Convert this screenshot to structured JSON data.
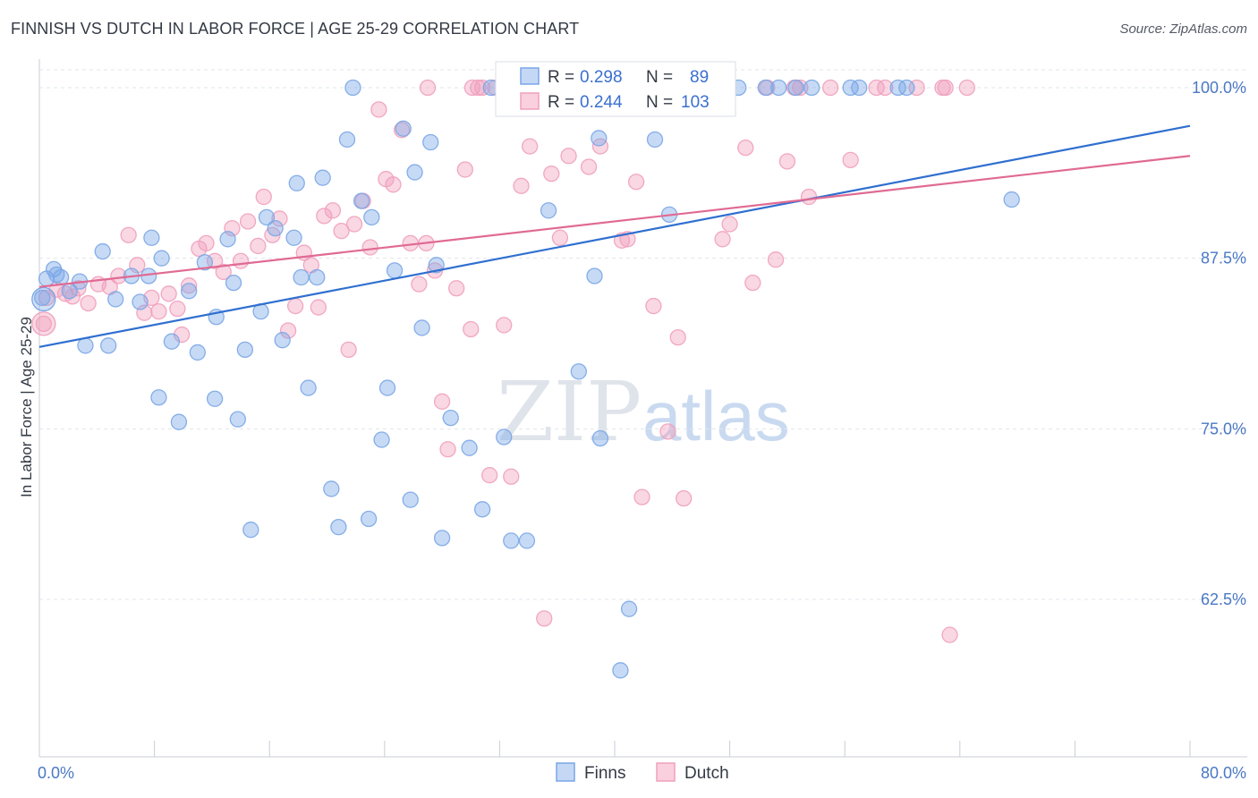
{
  "header": {
    "title": "FINNISH VS DUTCH IN LABOR FORCE | AGE 25-29 CORRELATION CHART",
    "source": "Source: ZipAtlas.com"
  },
  "watermark": {
    "zip": "ZIP",
    "atlas": "atlas"
  },
  "chart_data": {
    "type": "scatter",
    "title": "FINNISH VS DUTCH IN LABOR FORCE | AGE 25-29 CORRELATION CHART",
    "xlabel": "",
    "ylabel": "In Labor Force | Age 25-29",
    "xlim": [
      0,
      80
    ],
    "ylim": [
      51.5,
      101.5
    ],
    "x_tick_labels": [
      "0.0%",
      "80.0%"
    ],
    "y_ticks": [
      62.5,
      75.0,
      87.5,
      100.0
    ],
    "y_tick_labels": [
      "62.5%",
      "75.0%",
      "87.5%",
      "100.0%"
    ],
    "grid": true,
    "legend_position": "top-center",
    "colors": {
      "finns": "#7aa6e6",
      "dutch": "#f0a0bc",
      "finns_line": "#2f6fd0",
      "dutch_line": "#e06a93"
    },
    "legend": [
      {
        "series": "Finns",
        "r_label": "R =",
        "r": "0.298",
        "n_label": "N =",
        "n": "89"
      },
      {
        "series": "Dutch",
        "r_label": "R =",
        "r": "0.244",
        "n_label": "N =",
        "n": "103"
      }
    ],
    "series": [
      {
        "name": "Finns",
        "trend": [
          [
            0,
            81.0
          ],
          [
            80,
            97.2
          ]
        ],
        "points": [
          [
            0.2,
            84.6
          ],
          [
            0.5,
            86
          ],
          [
            1,
            86.7
          ],
          [
            1.2,
            86.3
          ],
          [
            1.5,
            86.1
          ],
          [
            2.1,
            85.1
          ],
          [
            2.8,
            85.8
          ],
          [
            4.4,
            88
          ],
          [
            3.2,
            81.1
          ],
          [
            4.8,
            81.1
          ],
          [
            5.3,
            84.5
          ],
          [
            6.4,
            86.2
          ],
          [
            7,
            84.3
          ],
          [
            7.6,
            86.2
          ],
          [
            7.8,
            89
          ],
          [
            8.5,
            87.5
          ],
          [
            9.2,
            81.4
          ],
          [
            8.3,
            77.3
          ],
          [
            9.7,
            75.5
          ],
          [
            10.4,
            85.1
          ],
          [
            11,
            80.6
          ],
          [
            11.5,
            87.2
          ],
          [
            12.2,
            77.2
          ],
          [
            12.3,
            83.2
          ],
          [
            13.1,
            88.9
          ],
          [
            13.5,
            85.7
          ],
          [
            13.8,
            75.7
          ],
          [
            14.3,
            80.8
          ],
          [
            14.7,
            67.6
          ],
          [
            15.4,
            83.6
          ],
          [
            15.8,
            90.5
          ],
          [
            16.4,
            89.7
          ],
          [
            16.9,
            81.5
          ],
          [
            17.7,
            89
          ],
          [
            17.9,
            93
          ],
          [
            18.2,
            86.1
          ],
          [
            18.7,
            78
          ],
          [
            19.3,
            86.1
          ],
          [
            19.7,
            93.4
          ],
          [
            20.3,
            70.6
          ],
          [
            20.8,
            67.8
          ],
          [
            21.4,
            96.2
          ],
          [
            21.8,
            100
          ],
          [
            22.4,
            91.7
          ],
          [
            22.9,
            68.4
          ],
          [
            23.1,
            90.5
          ],
          [
            23.8,
            74.2
          ],
          [
            24.2,
            78
          ],
          [
            24.7,
            86.6
          ],
          [
            25.3,
            97
          ],
          [
            25.8,
            69.8
          ],
          [
            26.1,
            93.8
          ],
          [
            26.6,
            82.4
          ],
          [
            27.2,
            96
          ],
          [
            27.6,
            87
          ],
          [
            28,
            67
          ],
          [
            28.6,
            75.8
          ],
          [
            29.9,
            73.6
          ],
          [
            30.8,
            69.1
          ],
          [
            31.4,
            100
          ],
          [
            32.3,
            74.4
          ],
          [
            32.8,
            66.8
          ],
          [
            33.9,
            66.8
          ],
          [
            34.2,
            100
          ],
          [
            35.4,
            91
          ],
          [
            36.3,
            100
          ],
          [
            37.5,
            79.2
          ],
          [
            38.1,
            100
          ],
          [
            38.6,
            86.2
          ],
          [
            38.9,
            96.3
          ],
          [
            39,
            74.3
          ],
          [
            40.4,
            57.3
          ],
          [
            41,
            61.8
          ],
          [
            41.5,
            100
          ],
          [
            42.8,
            96.2
          ],
          [
            43.8,
            90.7
          ],
          [
            44.1,
            100
          ],
          [
            45,
            100
          ],
          [
            46,
            100
          ],
          [
            48.6,
            100
          ],
          [
            50.5,
            100
          ],
          [
            51.4,
            100
          ],
          [
            52.6,
            100
          ],
          [
            53.7,
            100
          ],
          [
            56.4,
            100
          ],
          [
            57,
            100
          ],
          [
            59.7,
            100
          ],
          [
            60.3,
            100
          ],
          [
            67.6,
            91.8
          ]
        ]
      },
      {
        "name": "Dutch",
        "trend": [
          [
            0,
            85.4
          ],
          [
            80,
            95.0
          ]
        ],
        "points": [
          [
            0.3,
            82.7
          ],
          [
            0.5,
            84.6
          ],
          [
            1.2,
            85.2
          ],
          [
            1.8,
            84.9
          ],
          [
            2.3,
            84.7
          ],
          [
            2.7,
            85.3
          ],
          [
            3.4,
            84.2
          ],
          [
            4.1,
            85.6
          ],
          [
            4.9,
            85.4
          ],
          [
            5.5,
            86.2
          ],
          [
            6.2,
            89.2
          ],
          [
            6.8,
            87
          ],
          [
            7.3,
            83.5
          ],
          [
            7.8,
            84.6
          ],
          [
            8.3,
            83.6
          ],
          [
            9,
            84.9
          ],
          [
            9.6,
            83.8
          ],
          [
            9.9,
            81.9
          ],
          [
            10.4,
            85.5
          ],
          [
            11.1,
            88.2
          ],
          [
            11.6,
            88.6
          ],
          [
            12.2,
            87.3
          ],
          [
            12.8,
            86.5
          ],
          [
            13.4,
            89.7
          ],
          [
            14,
            87.3
          ],
          [
            14.5,
            90.2
          ],
          [
            15.2,
            88.4
          ],
          [
            15.6,
            92
          ],
          [
            16.2,
            89.2
          ],
          [
            16.7,
            90.4
          ],
          [
            17.3,
            82.2
          ],
          [
            17.8,
            84
          ],
          [
            18.4,
            87.9
          ],
          [
            18.9,
            87
          ],
          [
            19.4,
            83.9
          ],
          [
            19.8,
            90.6
          ],
          [
            20.4,
            91
          ],
          [
            21,
            89.5
          ],
          [
            21.5,
            80.8
          ],
          [
            21.9,
            90
          ],
          [
            22.5,
            91.7
          ],
          [
            23,
            88.3
          ],
          [
            23.6,
            98.4
          ],
          [
            24.1,
            93.3
          ],
          [
            24.6,
            92.9
          ],
          [
            25.2,
            96.9
          ],
          [
            25.8,
            88.6
          ],
          [
            26.4,
            85.6
          ],
          [
            26.9,
            88.6
          ],
          [
            27.5,
            86.6
          ],
          [
            28,
            77
          ],
          [
            28.4,
            73.5
          ],
          [
            29,
            85.3
          ],
          [
            29.6,
            94
          ],
          [
            30,
            82.3
          ],
          [
            30.8,
            100
          ],
          [
            31.3,
            71.6
          ],
          [
            31.7,
            100
          ],
          [
            32.3,
            82.6
          ],
          [
            32.8,
            71.5
          ],
          [
            33.5,
            92.8
          ],
          [
            34.1,
            95.7
          ],
          [
            35.1,
            61.1
          ],
          [
            35.6,
            93.7
          ],
          [
            36.2,
            89
          ],
          [
            36.8,
            95
          ],
          [
            37.3,
            100
          ],
          [
            38.2,
            94.2
          ],
          [
            39,
            95.7
          ],
          [
            39.9,
            100
          ],
          [
            40.5,
            88.8
          ],
          [
            40.9,
            88.9
          ],
          [
            41.5,
            93.1
          ],
          [
            41.9,
            70
          ],
          [
            42.7,
            84
          ],
          [
            43.7,
            74.8
          ],
          [
            44.4,
            81.7
          ],
          [
            44.8,
            69.9
          ],
          [
            45.3,
            100
          ],
          [
            47.5,
            88.9
          ],
          [
            48,
            90
          ],
          [
            49.1,
            95.6
          ],
          [
            49.6,
            85.7
          ],
          [
            50.6,
            100
          ],
          [
            51.2,
            87.4
          ],
          [
            52,
            94.6
          ],
          [
            52.5,
            100
          ],
          [
            52.9,
            100
          ],
          [
            53.5,
            92
          ],
          [
            56.4,
            94.7
          ],
          [
            58.8,
            100
          ],
          [
            62.8,
            100
          ],
          [
            63.3,
            59.9
          ],
          [
            61,
            100
          ],
          [
            64.5,
            100
          ],
          [
            63,
            100
          ],
          [
            55,
            100
          ],
          [
            30.5,
            100
          ],
          [
            30.1,
            100
          ],
          [
            27,
            100
          ],
          [
            35.2,
            100
          ],
          [
            47.3,
            100
          ],
          [
            58.2,
            100
          ]
        ]
      }
    ]
  }
}
